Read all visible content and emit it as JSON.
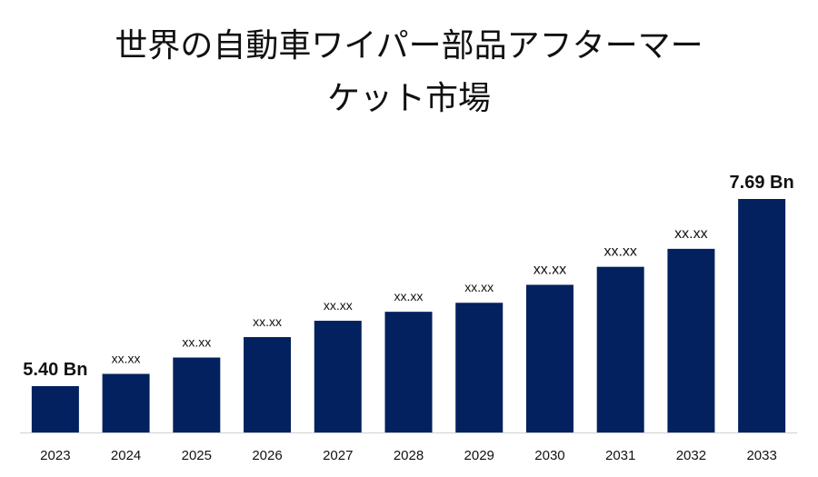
{
  "title_lines": [
    "世界の自動車ワイパー部品アフターマー",
    "ケット市場"
  ],
  "colors": {
    "bar": "#03215e",
    "axis": "#d0d0d0",
    "text": "#111111"
  },
  "chart_data": {
    "type": "bar",
    "title": "世界の自動車ワイパー部品アフターマーケット市場",
    "categories": [
      "2023",
      "2024",
      "2025",
      "2026",
      "2027",
      "2028",
      "2029",
      "2030",
      "2031",
      "2032",
      "2033"
    ],
    "values": [
      5.4,
      5.55,
      5.75,
      6.0,
      6.2,
      6.31,
      6.42,
      6.64,
      6.86,
      7.08,
      7.69
    ],
    "data_labels": [
      "5.40 Bn",
      "xx.xx",
      "xx.xx",
      "xx.xx",
      "xx.xx",
      "xx.xx",
      "xx.xx",
      "xx.xx",
      "xx.xx",
      "xx.xx",
      "7.69 Bn"
    ],
    "xlabel": "",
    "ylabel": "",
    "grid": false
  }
}
